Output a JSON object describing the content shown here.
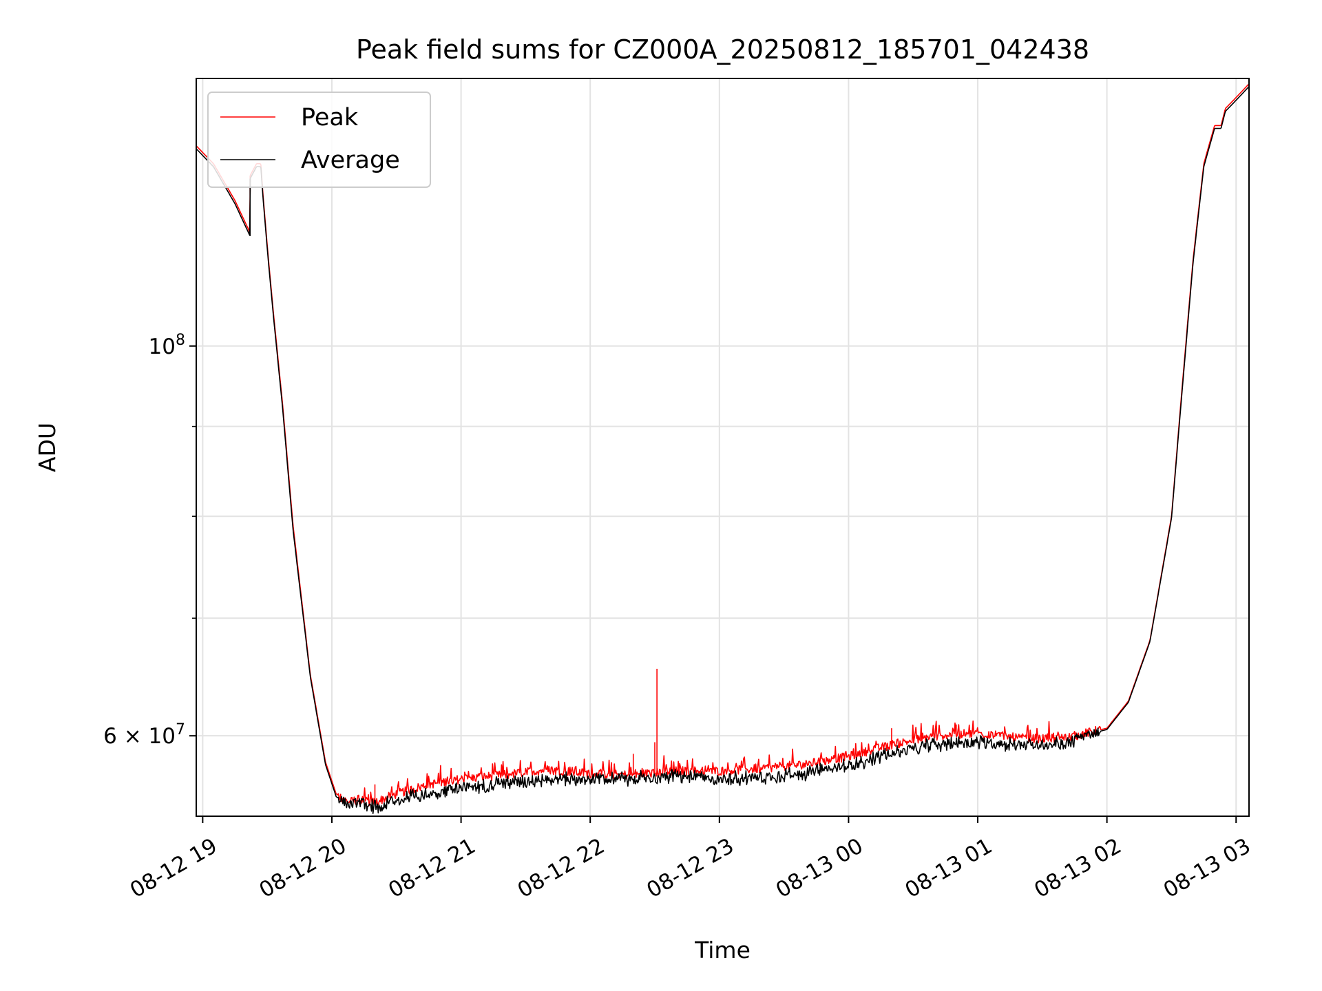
{
  "chart_data": {
    "type": "line",
    "title": "Peak field sums for CZ000A_20250812_185701_042438",
    "xlabel": "Time",
    "ylabel": "ADU",
    "y_scale": "log",
    "ylim": [
      54000000,
      142000000
    ],
    "xlim": [
      "2025-08-12 18:57",
      "2025-08-13 03:06"
    ],
    "grid": true,
    "legend_position": "upper left",
    "x_ticks": [
      "08-12 19",
      "08-12 20",
      "08-12 21",
      "08-12 22",
      "08-12 23",
      "08-13 00",
      "08-13 01",
      "08-13 02",
      "08-13 03"
    ],
    "y_ticks": [
      {
        "value": 100000000,
        "label_base": "10",
        "label_exp": "8"
      },
      {
        "value": 60000000,
        "label_base": "6 × 10",
        "label_exp": "7"
      }
    ],
    "y_minor_ticks": [
      70000000,
      80000000,
      90000000
    ],
    "series": [
      {
        "name": "Peak",
        "color": "#ff0000",
        "x": [
          "2025-08-12 18:57",
          "2025-08-12 19:05",
          "2025-08-12 19:15",
          "2025-08-12 19:22",
          "2025-08-12 19:22",
          "2025-08-12 19:25",
          "2025-08-12 19:27",
          "2025-08-12 19:28",
          "2025-08-12 19:30",
          "2025-08-12 19:33",
          "2025-08-12 19:37",
          "2025-08-12 19:42",
          "2025-08-12 19:50",
          "2025-08-12 19:57",
          "2025-08-12 20:02",
          "2025-08-12 20:08",
          "2025-08-12 20:12",
          "2025-08-12 20:20",
          "2025-08-12 20:30",
          "2025-08-12 20:45",
          "2025-08-12 21:00",
          "2025-08-12 21:20",
          "2025-08-12 21:40",
          "2025-08-12 22:00",
          "2025-08-12 22:20",
          "2025-08-12 22:40",
          "2025-08-12 23:00",
          "2025-08-12 23:20",
          "2025-08-12 23:40",
          "2025-08-13 00:00",
          "2025-08-13 00:20",
          "2025-08-13 00:40",
          "2025-08-13 01:00",
          "2025-08-13 01:20",
          "2025-08-13 01:40",
          "2025-08-13 02:00",
          "2025-08-13 02:10",
          "2025-08-13 02:20",
          "2025-08-13 02:30",
          "2025-08-13 02:35",
          "2025-08-13 02:40",
          "2025-08-13 02:45",
          "2025-08-13 02:50",
          "2025-08-13 02:53",
          "2025-08-13 02:55",
          "2025-08-13 03:00",
          "2025-08-13 03:06"
        ],
        "y": [
          130000000,
          127000000,
          121000000,
          116000000,
          125000000,
          127000000,
          127000000,
          122000000,
          114000000,
          104000000,
          93000000,
          79000000,
          65000000,
          58000000,
          55600000,
          55000000,
          55200000,
          55000000,
          55600000,
          56300000,
          56700000,
          57000000,
          57400000,
          57100000,
          57000000,
          57300000,
          57300000,
          57500000,
          57800000,
          58400000,
          59300000,
          60000000,
          60200000,
          59800000,
          59800000,
          60600000,
          62800000,
          68000000,
          80000000,
          95000000,
          112000000,
          127000000,
          133500000,
          133500000,
          136500000,
          138500000,
          141000000
        ],
        "spikes": [
          {
            "x": "2025-08-12 20:20",
            "y": 56300000
          },
          {
            "x": "2025-08-12 22:20",
            "y": 58600000
          },
          {
            "x": "2025-08-12 22:30",
            "y": 59500000
          },
          {
            "x": "2025-08-12 22:31",
            "y": 65500000
          },
          {
            "x": "2025-08-13 00:20",
            "y": 60600000
          },
          {
            "x": "2025-08-13 00:50",
            "y": 60900000
          }
        ]
      },
      {
        "name": "Average",
        "color": "#000000",
        "x": [
          "2025-08-12 18:57",
          "2025-08-12 19:05",
          "2025-08-12 19:15",
          "2025-08-12 19:22",
          "2025-08-12 19:22",
          "2025-08-12 19:25",
          "2025-08-12 19:27",
          "2025-08-12 19:28",
          "2025-08-12 19:30",
          "2025-08-12 19:33",
          "2025-08-12 19:37",
          "2025-08-12 19:42",
          "2025-08-12 19:50",
          "2025-08-12 19:57",
          "2025-08-12 20:02",
          "2025-08-12 20:08",
          "2025-08-12 20:12",
          "2025-08-12 20:20",
          "2025-08-12 20:30",
          "2025-08-12 20:45",
          "2025-08-12 21:00",
          "2025-08-12 21:20",
          "2025-08-12 21:40",
          "2025-08-12 22:00",
          "2025-08-12 22:20",
          "2025-08-12 22:40",
          "2025-08-12 23:00",
          "2025-08-12 23:20",
          "2025-08-12 23:40",
          "2025-08-13 00:00",
          "2025-08-13 00:20",
          "2025-08-13 00:40",
          "2025-08-13 01:00",
          "2025-08-13 01:20",
          "2025-08-13 01:40",
          "2025-08-13 02:00",
          "2025-08-13 02:10",
          "2025-08-13 02:20",
          "2025-08-13 02:30",
          "2025-08-13 02:35",
          "2025-08-13 02:40",
          "2025-08-13 02:45",
          "2025-08-13 02:50",
          "2025-08-13 02:53",
          "2025-08-13 02:55",
          "2025-08-13 03:00",
          "2025-08-13 03:06"
        ],
        "y": [
          129500000,
          126500000,
          120500000,
          115500000,
          124500000,
          126500000,
          126500000,
          121500000,
          113500000,
          103500000,
          92500000,
          78500000,
          64800000,
          57800000,
          55400000,
          54800000,
          55000000,
          54900000,
          55400000,
          55900000,
          56300000,
          56700000,
          57000000,
          57000000,
          57000000,
          57200000,
          57000000,
          57100000,
          57400000,
          58000000,
          58900000,
          59600000,
          59800000,
          59600000,
          59600000,
          60500000,
          62700000,
          67900000,
          79800000,
          94500000,
          111500000,
          126500000,
          133000000,
          133000000,
          136000000,
          138000000,
          140500000
        ]
      }
    ]
  }
}
